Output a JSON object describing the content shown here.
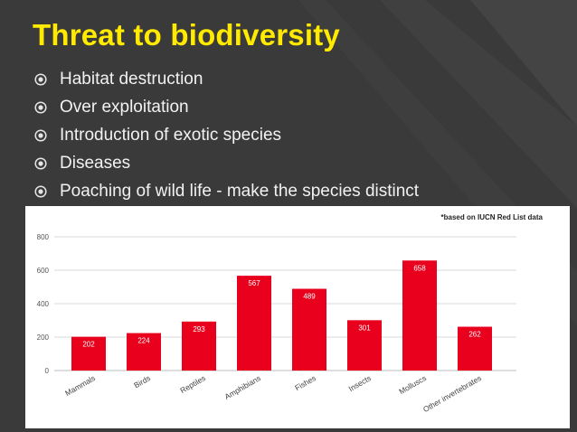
{
  "slide": {
    "title": "Threat to biodiversity",
    "bullets": [
      "Habitat destruction",
      "Over exploitation",
      "Introduction of exotic species",
      "Diseases",
      "Poaching of wild life - make the species distinct"
    ],
    "colors": {
      "background": "#3a3a3a",
      "title": "#ffea00",
      "text": "#f2f2f2"
    },
    "bullet_icon": "circled-dot-icon"
  },
  "chart_data": {
    "type": "bar",
    "note": "*based on IUCN Red List data",
    "categories": [
      "Mammals",
      "Birds",
      "Reptiles",
      "Amphibians",
      "Fishes",
      "Insects",
      "Molluscs",
      "Other invertebrates"
    ],
    "series": [
      {
        "values": [
          202,
          224,
          293,
          567,
          489,
          301,
          658,
          262
        ],
        "color": "#e8001c"
      }
    ],
    "yticks": [
      0,
      200,
      400,
      600,
      800
    ],
    "ylim": [
      0,
      800
    ],
    "grid": true,
    "legend": "none"
  }
}
